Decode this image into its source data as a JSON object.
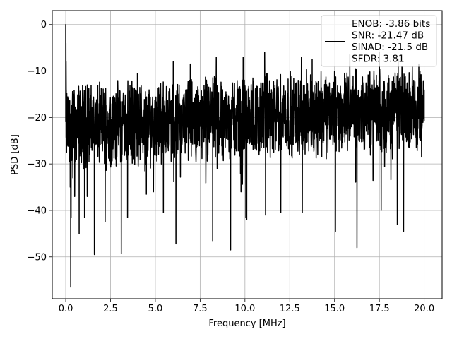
{
  "chart_data": {
    "type": "line",
    "xlabel": "Frequency [MHz]",
    "ylabel": "PSD [dB]",
    "xlim": [
      -0.75,
      21.0
    ],
    "ylim": [
      -59,
      3
    ],
    "xticks": [
      0.0,
      2.5,
      5.0,
      7.5,
      10.0,
      12.5,
      15.0,
      17.5,
      20.0
    ],
    "xtick_labels": [
      "0.0",
      "2.5",
      "5.0",
      "7.5",
      "10.0",
      "12.5",
      "15.0",
      "17.5",
      "20.0"
    ],
    "yticks": [
      0,
      -10,
      -20,
      -30,
      -40,
      -50
    ],
    "ytick_labels": [
      "0",
      "−10",
      "−20",
      "−30",
      "−40",
      "−50"
    ],
    "grid": true,
    "legend_position": "top-right",
    "legend_lines": [
      "ENOB: -3.86 bits",
      "SNR: -21.47 dB",
      "SINAD: -21.5 dB",
      "SFDR: 3.81"
    ],
    "series": [
      {
        "color": "#000000",
        "noise": {
          "x_range": [
            0.0,
            20.0
          ],
          "num_points": 2048,
          "floor_start_db": -22,
          "floor_end_db": -18,
          "upper_envelope_db": -9,
          "lower_envelope_db": -30
        },
        "points": [
          [
            0.0,
            0.0
          ],
          [
            0.01,
            -4
          ],
          [
            0.02,
            -8
          ],
          [
            0.03,
            -14
          ],
          [
            0.05,
            -19
          ],
          [
            0.08,
            -24
          ],
          [
            0.1,
            -26
          ],
          [
            0.15,
            -18
          ],
          [
            0.2,
            -28
          ],
          [
            0.23,
            -22
          ],
          [
            0.25,
            -35
          ],
          [
            0.28,
            -56.5
          ],
          [
            0.3,
            -41.5
          ],
          [
            0.35,
            -27
          ],
          [
            0.4,
            -33
          ],
          [
            0.5,
            -37
          ],
          [
            0.6,
            -29
          ],
          [
            0.75,
            -45
          ],
          [
            1.05,
            -41.5
          ],
          [
            1.2,
            -37
          ],
          [
            1.6,
            -49.5
          ],
          [
            2.2,
            -42.5
          ],
          [
            3.1,
            -49.3
          ],
          [
            3.45,
            -41.5
          ],
          [
            4.5,
            -36.5
          ],
          [
            5.45,
            -40.5
          ],
          [
            6.15,
            -47.2
          ],
          [
            8.2,
            -46.5
          ],
          [
            9.2,
            -48.5
          ],
          [
            10.05,
            -41.5
          ],
          [
            10.1,
            -42
          ],
          [
            11.15,
            -41
          ],
          [
            12.0,
            -40.5
          ],
          [
            13.2,
            -40.5
          ],
          [
            15.05,
            -44.5
          ],
          [
            16.25,
            -48
          ],
          [
            17.6,
            -40
          ],
          [
            18.5,
            -43
          ],
          [
            18.85,
            -44.5
          ],
          [
            1.2,
            -13
          ],
          [
            4.0,
            -10.5
          ],
          [
            6.0,
            -8
          ],
          [
            6.95,
            -8.5
          ],
          [
            8.4,
            -7
          ],
          [
            9.9,
            -7
          ],
          [
            11.1,
            -6
          ],
          [
            13.15,
            -7
          ],
          [
            13.75,
            -7.5
          ],
          [
            15.85,
            -6.5
          ],
          [
            17.5,
            -6
          ],
          [
            18.55,
            -7.5
          ],
          [
            19.7,
            -8.5
          ],
          [
            20.0,
            -14
          ]
        ]
      }
    ]
  }
}
